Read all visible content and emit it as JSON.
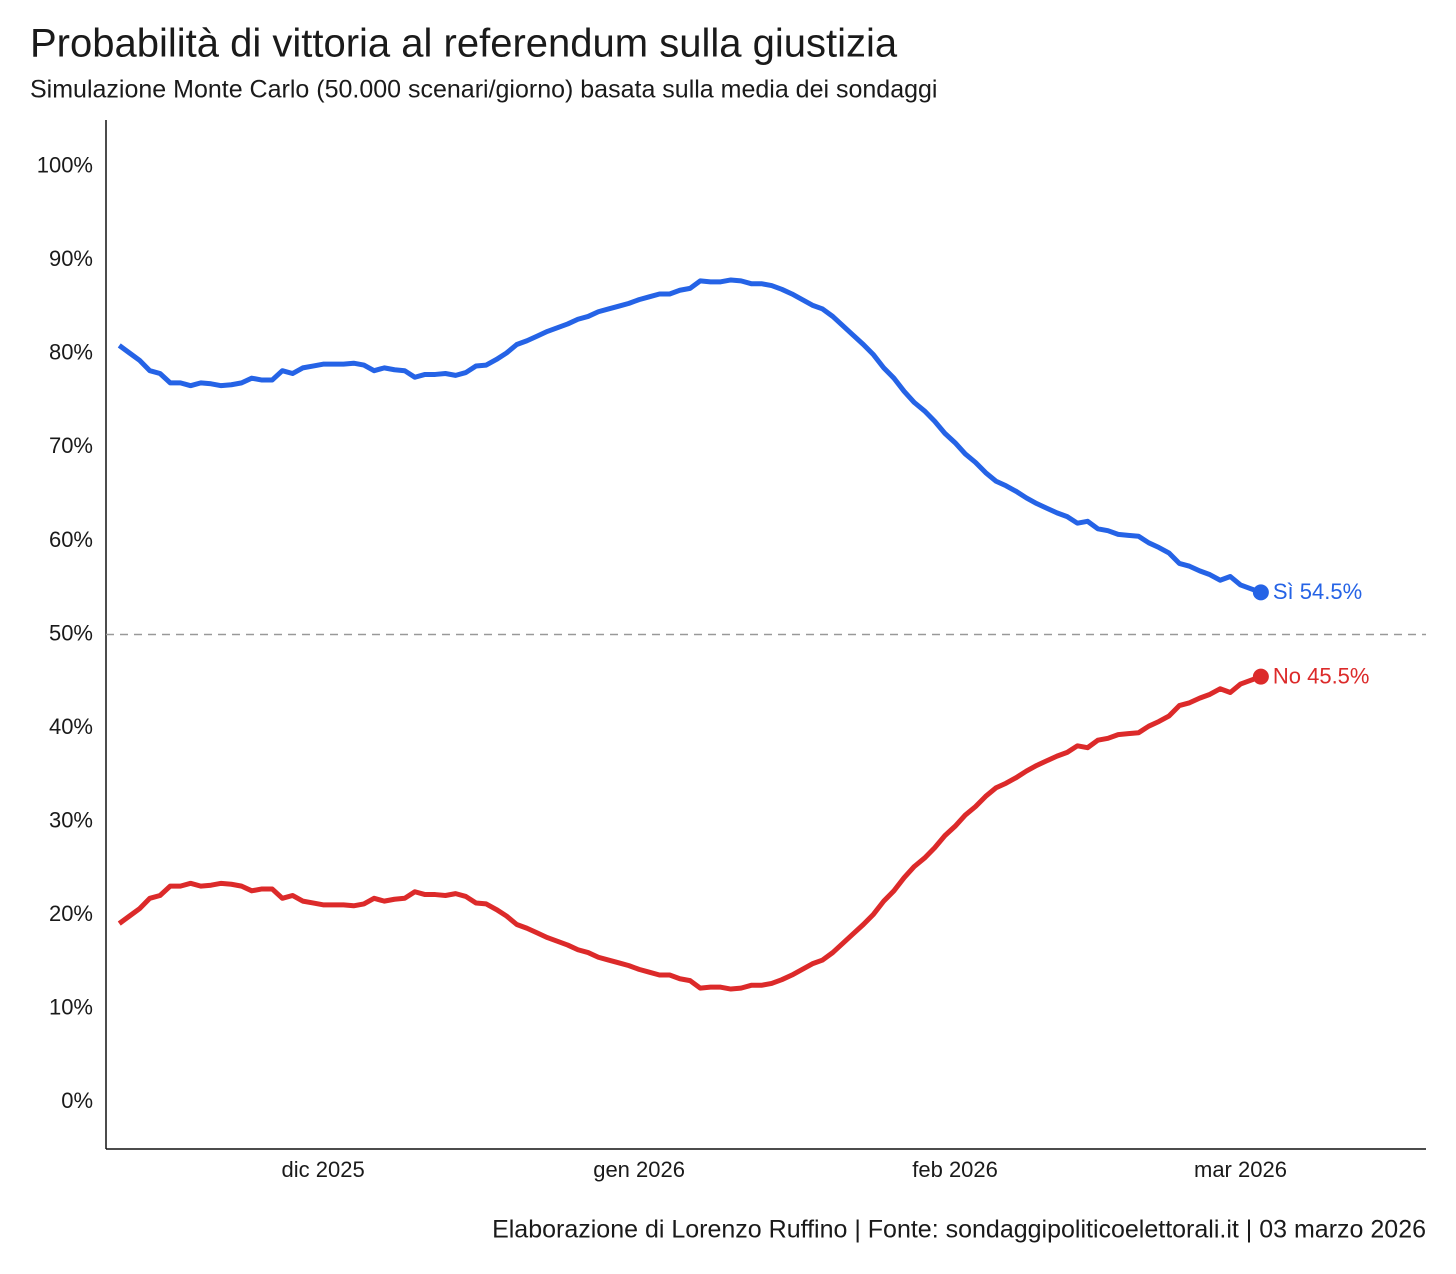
{
  "chart_data": {
    "type": "line",
    "title": "Probabilità di vittoria al referendum sulla giustizia",
    "subtitle": "Simulazione Monte Carlo (50.000 scenari/giorno) basata sulla media dei sondaggi",
    "caption": "Elaborazione di Lorenzo Ruffino | Fonte: sondaggipoliticoelettorali.it | 03 marzo 2026",
    "xlim": [
      -1.3,
      128.2
    ],
    "xticks": [
      {
        "value": 20,
        "label": "dic 2025"
      },
      {
        "value": 51,
        "label": "gen 2026"
      },
      {
        "value": 82,
        "label": "feb 2026"
      },
      {
        "value": 110,
        "label": "mar 2026"
      }
    ],
    "ylim": [
      -5,
      105
    ],
    "yticks": [
      {
        "value": 0,
        "label": "0%"
      },
      {
        "value": 10,
        "label": "10%"
      },
      {
        "value": 20,
        "label": "20%"
      },
      {
        "value": 30,
        "label": "30%"
      },
      {
        "value": 40,
        "label": "40%"
      },
      {
        "value": 50,
        "label": "50%"
      },
      {
        "value": 60,
        "label": "60%"
      },
      {
        "value": 70,
        "label": "70%"
      },
      {
        "value": 80,
        "label": "80%"
      },
      {
        "value": 90,
        "label": "90%"
      },
      {
        "value": 100,
        "label": "100%"
      }
    ],
    "hline": 50,
    "series": [
      {
        "label": "Sì 54.5%",
        "color": "#2563e6",
        "values": [
          80.9,
          80.1,
          79.3,
          78.2,
          77.9,
          76.9,
          76.9,
          76.6,
          76.9,
          76.8,
          76.6,
          76.7,
          76.9,
          77.4,
          77.2,
          77.2,
          78.2,
          77.9,
          78.5,
          78.7,
          78.9,
          78.9,
          78.9,
          79.0,
          78.8,
          78.2,
          78.5,
          78.3,
          78.2,
          77.5,
          77.8,
          77.8,
          77.9,
          77.7,
          78.0,
          78.7,
          78.8,
          79.4,
          80.1,
          81.0,
          81.4,
          81.9,
          82.4,
          82.8,
          83.2,
          83.7,
          84.0,
          84.5,
          84.8,
          85.1,
          85.4,
          85.8,
          86.1,
          86.4,
          86.4,
          86.8,
          87.0,
          87.8,
          87.7,
          87.7,
          87.9,
          87.8,
          87.5,
          87.5,
          87.3,
          86.9,
          86.4,
          85.8,
          85.2,
          84.8,
          84.0,
          83.0,
          82.0,
          81.0,
          79.9,
          78.5,
          77.4,
          76.0,
          74.8,
          73.9,
          72.8,
          71.5,
          70.5,
          69.3,
          68.4,
          67.3,
          66.4,
          65.9,
          65.3,
          64.6,
          64.0,
          63.5,
          63.0,
          62.6,
          61.9,
          62.1,
          61.3,
          61.1,
          60.7,
          60.6,
          60.5,
          59.8,
          59.3,
          58.7,
          57.6,
          57.3,
          56.8,
          56.4,
          55.8,
          56.2,
          55.3,
          54.9,
          54.5
        ]
      },
      {
        "label": "No 45.5%",
        "color": "#dc2a2a",
        "values": [
          19.1,
          19.9,
          20.7,
          21.8,
          22.1,
          23.1,
          23.1,
          23.4,
          23.1,
          23.2,
          23.4,
          23.3,
          23.1,
          22.6,
          22.8,
          22.8,
          21.8,
          22.1,
          21.5,
          21.3,
          21.1,
          21.1,
          21.1,
          21.0,
          21.2,
          21.8,
          21.5,
          21.7,
          21.8,
          22.5,
          22.2,
          22.2,
          22.1,
          22.3,
          22.0,
          21.3,
          21.2,
          20.6,
          19.9,
          19.0,
          18.6,
          18.1,
          17.6,
          17.2,
          16.8,
          16.3,
          16.0,
          15.5,
          15.2,
          14.9,
          14.6,
          14.2,
          13.9,
          13.6,
          13.6,
          13.2,
          13.0,
          12.2,
          12.3,
          12.3,
          12.1,
          12.2,
          12.5,
          12.5,
          12.7,
          13.1,
          13.6,
          14.2,
          14.8,
          15.2,
          16.0,
          17.0,
          18.0,
          19.0,
          20.1,
          21.5,
          22.6,
          24.0,
          25.2,
          26.1,
          27.2,
          28.5,
          29.5,
          30.7,
          31.6,
          32.7,
          33.6,
          34.1,
          34.7,
          35.4,
          36.0,
          36.5,
          37.0,
          37.4,
          38.1,
          37.9,
          38.7,
          38.9,
          39.3,
          39.4,
          39.5,
          40.2,
          40.7,
          41.3,
          42.4,
          42.7,
          43.2,
          43.6,
          44.2,
          43.8,
          44.7,
          45.1,
          45.5
        ]
      }
    ]
  }
}
